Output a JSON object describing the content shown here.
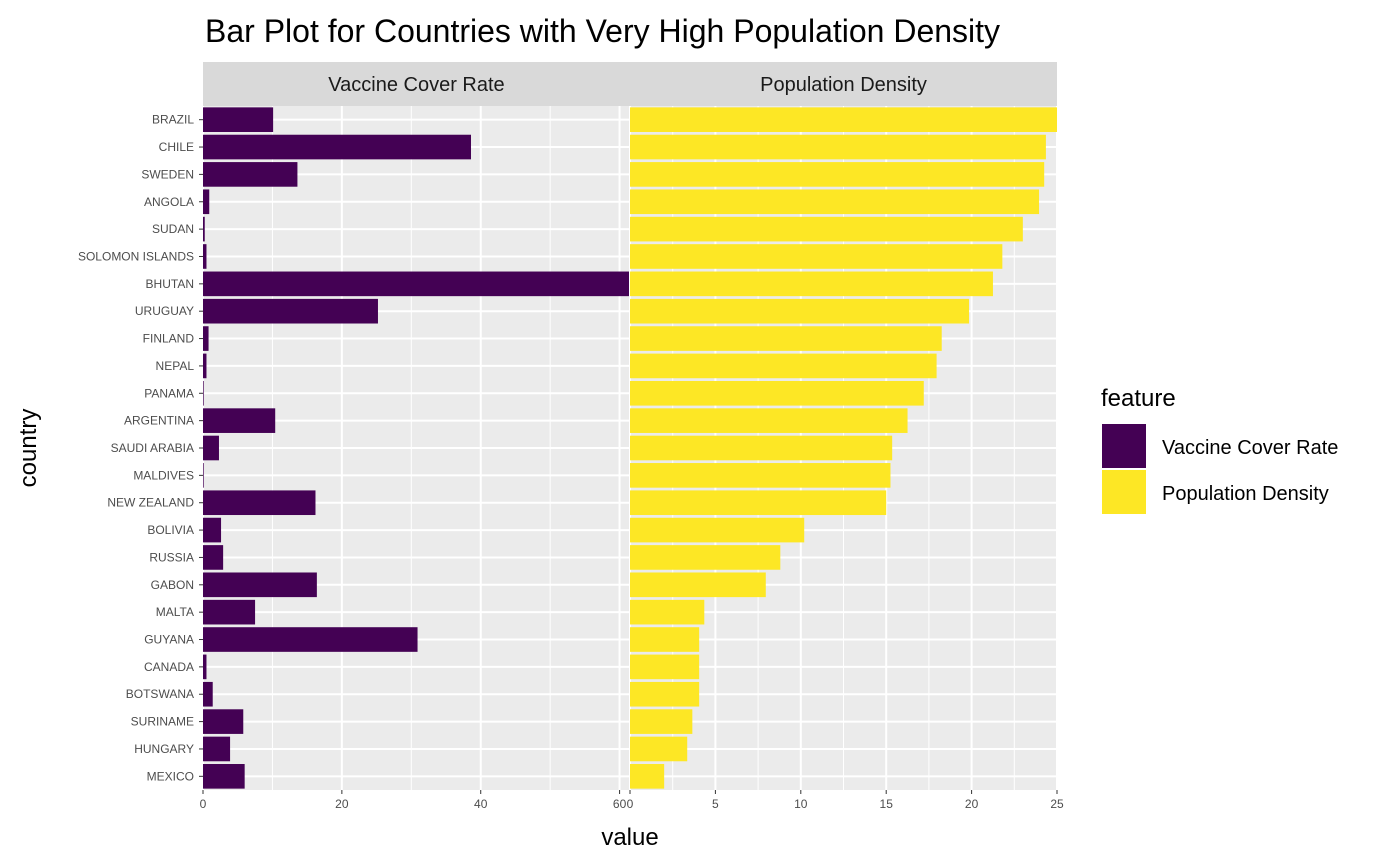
{
  "chart_data": {
    "type": "bar",
    "orientation": "horizontal",
    "title": "Bar Plot for Countries with Very High Population Density",
    "xlabel": "value",
    "ylabel": "country",
    "legend": {
      "title": "feature",
      "position": "right"
    },
    "categories": [
      "BRAZIL",
      "CHILE",
      "SWEDEN",
      "ANGOLA",
      "SUDAN",
      "SOLOMON ISLANDS",
      "BHUTAN",
      "URUGUAY",
      "FINLAND",
      "NEPAL",
      "PANAMA",
      "ARGENTINA",
      "SAUDI ARABIA",
      "MALDIVES",
      "NEW ZEALAND",
      "BOLIVIA",
      "RUSSIA",
      "GABON",
      "MALTA",
      "GUYANA",
      "CANADA",
      "BOTSWANA",
      "SURINAME",
      "HUNGARY",
      "MEXICO"
    ],
    "facets": [
      {
        "name": "Vaccine Cover Rate",
        "color": "#440154",
        "xlim": [
          0,
          61.5
        ],
        "ticks": [
          0,
          20,
          40,
          60
        ],
        "values": [
          10.1,
          38.6,
          13.6,
          0.9,
          0.25,
          0.5,
          61.5,
          25.2,
          0.8,
          0.5,
          0.1,
          10.4,
          2.3,
          0.1,
          16.2,
          2.6,
          2.9,
          16.4,
          7.5,
          30.9,
          0.5,
          1.4,
          5.8,
          3.9,
          6.0
        ]
      },
      {
        "name": "Population Density",
        "color": "#FDE725",
        "xlim": [
          0,
          25
        ],
        "ticks": [
          0,
          5,
          10,
          15,
          20,
          25
        ],
        "values": [
          25.0,
          24.35,
          24.25,
          23.95,
          23.0,
          21.8,
          21.25,
          19.85,
          18.25,
          17.95,
          17.2,
          16.25,
          15.35,
          15.25,
          15.0,
          10.2,
          8.8,
          7.95,
          4.35,
          4.05,
          4.05,
          4.05,
          3.65,
          3.35,
          2.0
        ]
      }
    ]
  }
}
